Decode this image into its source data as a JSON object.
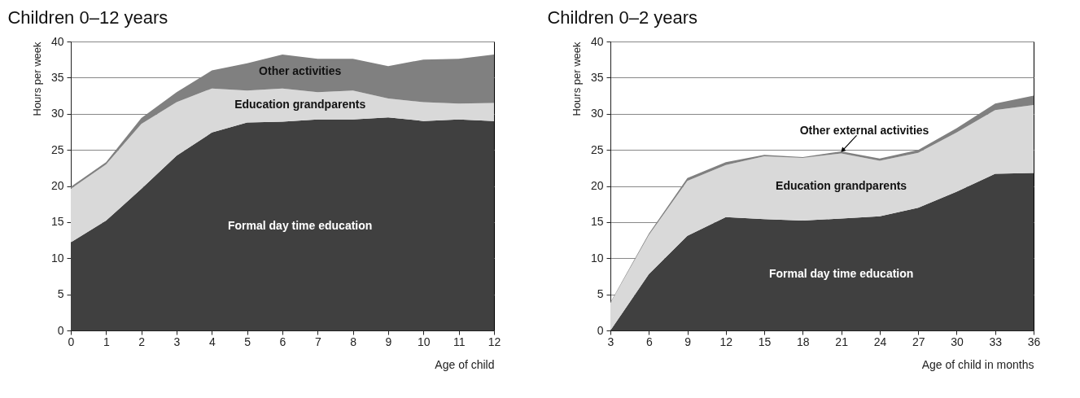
{
  "chart_data": [
    {
      "type": "area",
      "title": "Children 0–12 years",
      "xlabel": "Age of child",
      "ylabel": "Hours per week",
      "stacked": true,
      "legend": false,
      "grid": "y",
      "x": [
        0,
        1,
        2,
        3,
        4,
        5,
        6,
        7,
        8,
        9,
        10,
        11,
        12
      ],
      "xlim": [
        0,
        12
      ],
      "xticks": [
        0,
        1,
        2,
        3,
        4,
        5,
        6,
        7,
        8,
        9,
        10,
        11,
        12
      ],
      "ylim": [
        0,
        40
      ],
      "yticks": [
        0,
        5,
        10,
        15,
        20,
        25,
        30,
        35,
        40
      ],
      "series": [
        {
          "name": "Formal day time education",
          "color": "#404040",
          "values": [
            12.2,
            15.2,
            19.6,
            24.2,
            27.4,
            28.8,
            28.9,
            29.2,
            29.2,
            29.5,
            29.0,
            29.2,
            29.0
          ]
        },
        {
          "name": "Education grandparents",
          "color": "#d9d9d9",
          "values": [
            7.4,
            7.8,
            9.0,
            7.4,
            6.1,
            4.4,
            4.6,
            3.8,
            4.0,
            2.6,
            2.6,
            2.2,
            2.5
          ]
        },
        {
          "name": "Other activities",
          "color": "#808080",
          "values": [
            0.3,
            0.3,
            0.8,
            1.4,
            2.5,
            3.8,
            4.7,
            4.6,
            4.4,
            4.5,
            5.9,
            6.2,
            6.7
          ]
        }
      ]
    },
    {
      "type": "area",
      "title": "Children 0–2 years",
      "xlabel": "Age of child in months",
      "ylabel": "Hours per week",
      "stacked": true,
      "legend": false,
      "grid": "y",
      "x": [
        3,
        6,
        9,
        12,
        15,
        18,
        21,
        24,
        27,
        30,
        33,
        36
      ],
      "xlim": [
        3,
        36
      ],
      "xticks": [
        3,
        6,
        9,
        12,
        15,
        18,
        21,
        24,
        27,
        30,
        33,
        36
      ],
      "ylim": [
        0,
        40
      ],
      "yticks": [
        0,
        5,
        10,
        15,
        20,
        25,
        30,
        35,
        40
      ],
      "series": [
        {
          "name": "Formal day time education",
          "color": "#404040",
          "values": [
            0,
            7.8,
            13.1,
            15.7,
            15.4,
            15.2,
            15.5,
            15.8,
            17.0,
            19.2,
            21.7,
            21.8
          ]
        },
        {
          "name": "Education grandparents",
          "color": "#d9d9d9",
          "values": [
            3.8,
            5.4,
            7.6,
            7.2,
            8.7,
            8.7,
            9.0,
            7.7,
            7.6,
            8.2,
            8.8,
            9.4
          ]
        },
        {
          "name": "Other external activities",
          "color": "#808080",
          "values": [
            0.1,
            0.2,
            0.4,
            0.4,
            0.2,
            0.1,
            0.3,
            0.3,
            0.4,
            0.6,
            0.9,
            1.3
          ]
        }
      ]
    }
  ]
}
